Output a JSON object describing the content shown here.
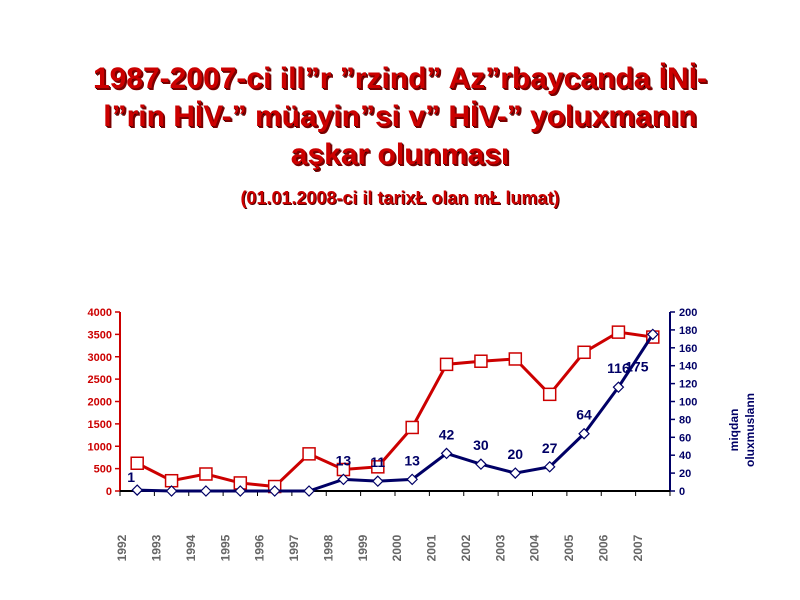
{
  "title_lines": [
    "1987-2007-ci ill”r ”rzind”  Az”rbaycanda İNİ-",
    "l”rin HİV-”  müayin”si v”  HİV-”  yoluxmanın",
    "aşkar  olunması"
  ],
  "subtitle": "(01.01.2008-ci il tarixŁ  olan mŁ lumat)",
  "chart_data": {
    "type": "line",
    "categories": [
      "1992",
      "1993",
      "1994",
      "1995",
      "1996",
      "1997",
      "1998",
      "1999",
      "2000",
      "2001",
      "2002",
      "2003",
      "2004",
      "2005",
      "2006",
      "2007"
    ],
    "y_left": {
      "ylim": [
        0,
        4000
      ],
      "ticks": [
        "0",
        "500",
        "1000",
        "1500",
        "2000",
        "2500",
        "3000",
        "3500",
        "4000"
      ],
      "color": "#cc0000"
    },
    "y_right": {
      "ylim": [
        0,
        200
      ],
      "ticks": [
        "0",
        "20",
        "40",
        "60",
        "80",
        "100",
        "120",
        "140",
        "160",
        "180",
        "200"
      ],
      "color": "#000066",
      "label_lines": [
        "miqdan",
        "oluxmuslann"
      ]
    },
    "series": [
      {
        "axis": "left",
        "color": "#cc0000",
        "marker": "square",
        "values": [
          620,
          230,
          380,
          180,
          100,
          830,
          480,
          540,
          1420,
          2830,
          2900,
          2950,
          2160,
          3100,
          3550,
          3440
        ]
      },
      {
        "axis": "right",
        "color": "#000066",
        "marker": "diamond",
        "values": [
          1,
          0,
          0,
          0,
          0,
          0,
          13,
          11,
          13,
          42,
          30,
          20,
          27,
          64,
          116,
          175
        ],
        "labels": [
          "1",
          "",
          "",
          "",
          "",
          "",
          "13",
          "11",
          "13",
          "42",
          "30",
          "20",
          "27",
          "64",
          "116",
          "175"
        ]
      }
    ]
  }
}
